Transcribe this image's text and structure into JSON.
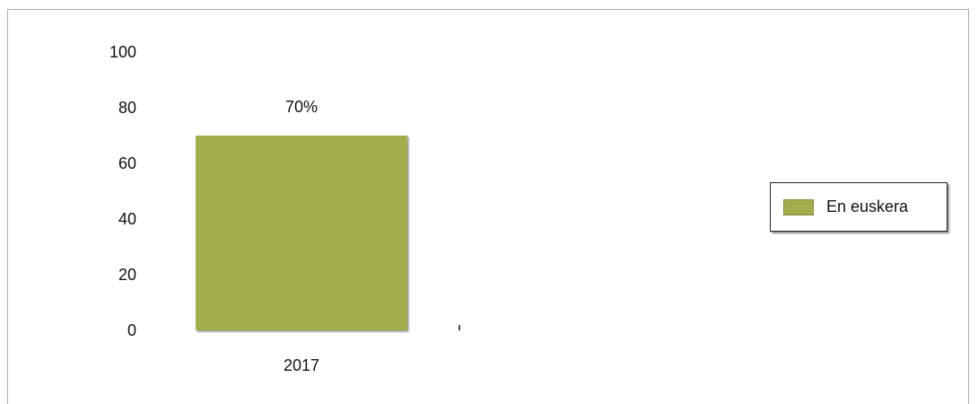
{
  "chart_data": {
    "type": "bar",
    "categories": [
      "2017"
    ],
    "series": [
      {
        "name": "En euskera",
        "values": [
          70
        ],
        "color": "#a3ad4b"
      }
    ],
    "data_labels": [
      "70%"
    ],
    "ylim": [
      0,
      100
    ],
    "yticks": [
      0,
      20,
      40,
      60,
      80,
      100
    ],
    "grid": false,
    "legend_position": "right"
  }
}
